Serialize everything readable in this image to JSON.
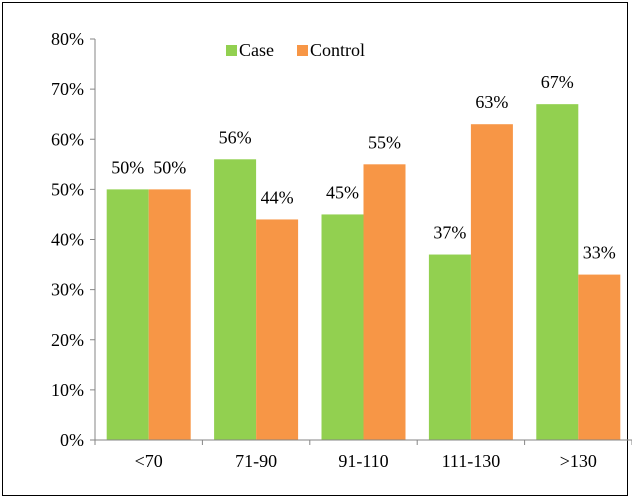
{
  "chart_data": {
    "type": "bar",
    "title": "",
    "xlabel": "",
    "ylabel": "",
    "categories": [
      "<70",
      "71-90",
      "91-110",
      "111-130",
      ">130"
    ],
    "series": [
      {
        "name": "Case",
        "color": "#92d050",
        "values": [
          50,
          56,
          45,
          37,
          67
        ],
        "labels": [
          "50%",
          "56%",
          "45%",
          "37%",
          "67%"
        ]
      },
      {
        "name": "Control",
        "color": "#f79646",
        "values": [
          50,
          44,
          55,
          63,
          33
        ],
        "labels": [
          "50%",
          "44%",
          "55%",
          "63%",
          "33%"
        ]
      }
    ],
    "ylim": [
      0,
      80
    ],
    "yticks": [
      0,
      10,
      20,
      30,
      40,
      50,
      60,
      70,
      80
    ],
    "ytick_labels": [
      "0%",
      "10%",
      "20%",
      "30%",
      "40%",
      "50%",
      "60%",
      "70%",
      "80%"
    ],
    "legend": "top-center",
    "grid": false
  }
}
